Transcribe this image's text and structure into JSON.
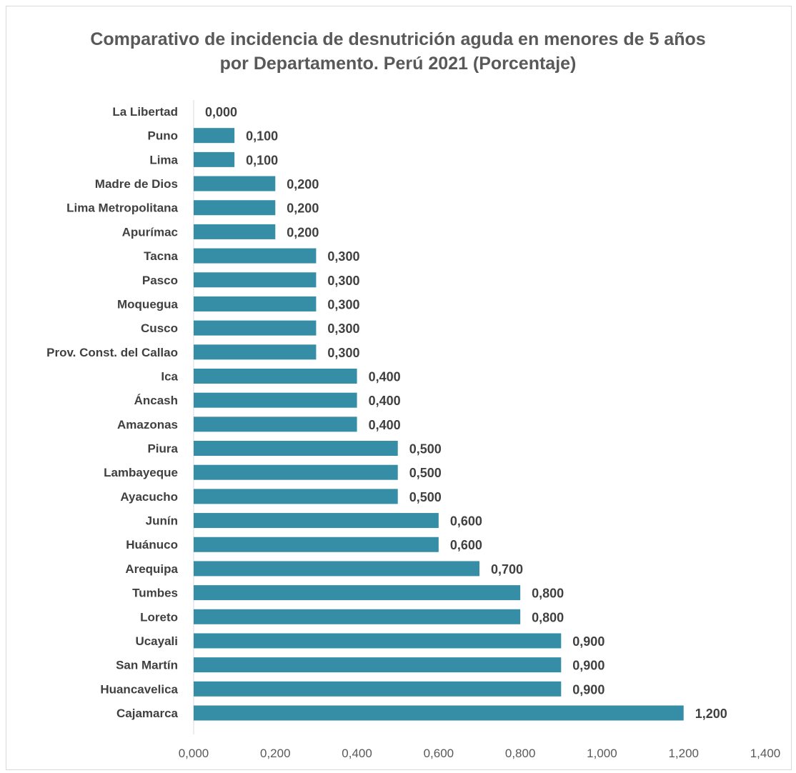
{
  "chart_data": {
    "type": "bar",
    "orientation": "horizontal",
    "title_lines": [
      "Comparativo de incidencia de desnutrición aguda en menores de 5 años",
      "por Departamento. Perú 2021 (Porcentaje)"
    ],
    "categories": [
      "La Libertad",
      "Puno",
      "Lima",
      "Madre de Dios",
      "Lima Metropolitana",
      "Apurímac",
      "Tacna",
      "Pasco",
      "Moquegua",
      "Cusco",
      "Prov. Const. del Callao",
      "Ica",
      "Áncash",
      "Amazonas",
      "Piura",
      "Lambayeque",
      "Ayacucho",
      "Junín",
      "Huánuco",
      "Arequipa",
      "Tumbes",
      "Loreto",
      "Ucayali",
      "San Martín",
      "Huancavelica",
      "Cajamarca"
    ],
    "values": [
      0.0,
      0.1,
      0.1,
      0.2,
      0.2,
      0.2,
      0.3,
      0.3,
      0.3,
      0.3,
      0.3,
      0.4,
      0.4,
      0.4,
      0.5,
      0.5,
      0.5,
      0.6,
      0.6,
      0.7,
      0.8,
      0.8,
      0.9,
      0.9,
      0.9,
      1.2
    ],
    "value_labels": [
      "0,000",
      "0,100",
      "0,100",
      "0,200",
      "0,200",
      "0,200",
      "0,300",
      "0,300",
      "0,300",
      "0,300",
      "0,300",
      "0,400",
      "0,400",
      "0,400",
      "0,500",
      "0,500",
      "0,500",
      "0,600",
      "0,600",
      "0,700",
      "0,800",
      "0,800",
      "0,900",
      "0,900",
      "0,900",
      "1,200"
    ],
    "xlim": [
      0,
      1.4
    ],
    "xticks": [
      0,
      0.2,
      0.4,
      0.6,
      0.8,
      1.0,
      1.2,
      1.4
    ],
    "xtick_labels": [
      "0,000",
      "0,200",
      "0,400",
      "0,600",
      "0,800",
      "1,000",
      "1,200",
      "1,400"
    ],
    "grid": false,
    "legend": "none",
    "bar_color": "#358ea6",
    "text_color": "#404040"
  }
}
